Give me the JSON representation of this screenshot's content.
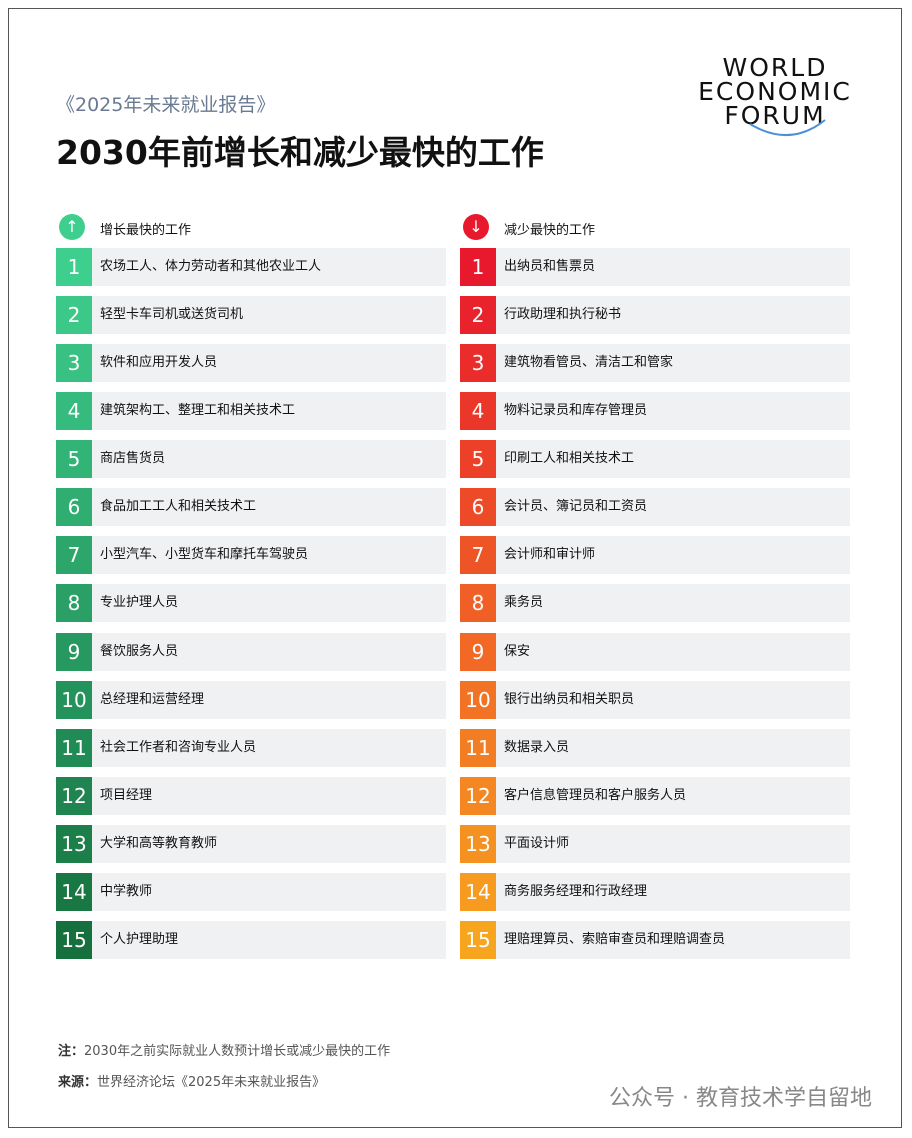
{
  "header": {
    "subtitle": "《2025年未来就业报告》",
    "title": "2030年前增长和减少最快的工作"
  },
  "logo": {
    "lines": [
      "WORLD",
      "ECONOMIC",
      "FORUM"
    ]
  },
  "columns": [
    {
      "heading": "增长最快的工作",
      "items": [
        {
          "rank": 1,
          "label": "农场工人、体力劳动者和其他农业工人"
        },
        {
          "rank": 2,
          "label": "轻型卡车司机或送货司机"
        },
        {
          "rank": 3,
          "label": "软件和应用开发人员"
        },
        {
          "rank": 4,
          "label": "建筑架构工、整理工和相关技术工"
        },
        {
          "rank": 5,
          "label": "商店售货员"
        },
        {
          "rank": 6,
          "label": "食品加工工人和相关技术工"
        },
        {
          "rank": 7,
          "label": "小型汽车、小型货车和摩托车驾驶员"
        },
        {
          "rank": 8,
          "label": "专业护理人员"
        },
        {
          "rank": 9,
          "label": "餐饮服务人员"
        },
        {
          "rank": 10,
          "label": "总经理和运营经理"
        },
        {
          "rank": 11,
          "label": "社会工作者和咨询专业人员"
        },
        {
          "rank": 12,
          "label": "项目经理"
        },
        {
          "rank": 13,
          "label": "大学和高等教育教师"
        },
        {
          "rank": 14,
          "label": "中学教师"
        },
        {
          "rank": 15,
          "label": "个人护理助理"
        }
      ]
    },
    {
      "heading": "减少最快的工作",
      "items": [
        {
          "rank": 1,
          "label": "出纳员和售票员"
        },
        {
          "rank": 2,
          "label": "行政助理和执行秘书"
        },
        {
          "rank": 3,
          "label": "建筑物看管员、清洁工和管家"
        },
        {
          "rank": 4,
          "label": "物料记录员和库存管理员"
        },
        {
          "rank": 5,
          "label": "印刷工人和相关技术工"
        },
        {
          "rank": 6,
          "label": "会计员、簿记员和工资员"
        },
        {
          "rank": 7,
          "label": "会计师和审计师"
        },
        {
          "rank": 8,
          "label": "乘务员"
        },
        {
          "rank": 9,
          "label": "保安"
        },
        {
          "rank": 10,
          "label": "银行出纳员和相关职员"
        },
        {
          "rank": 11,
          "label": "数据录入员"
        },
        {
          "rank": 12,
          "label": "客户信息管理员和客户服务人员"
        },
        {
          "rank": 13,
          "label": "平面设计师"
        },
        {
          "rank": 14,
          "label": "商务服务经理和行政经理"
        },
        {
          "rank": 15,
          "label": "理赔理算员、索赔审查员和理赔调查员"
        }
      ]
    }
  ],
  "footer": {
    "note_label": "注：",
    "note": "2030年之前实际就业人数预计增长或减少最快的工作",
    "source_label": "来源：",
    "source": "世界经济论坛《2025年未来就业报告》",
    "watermark": "公众号 · 教育技术学自留地"
  }
}
